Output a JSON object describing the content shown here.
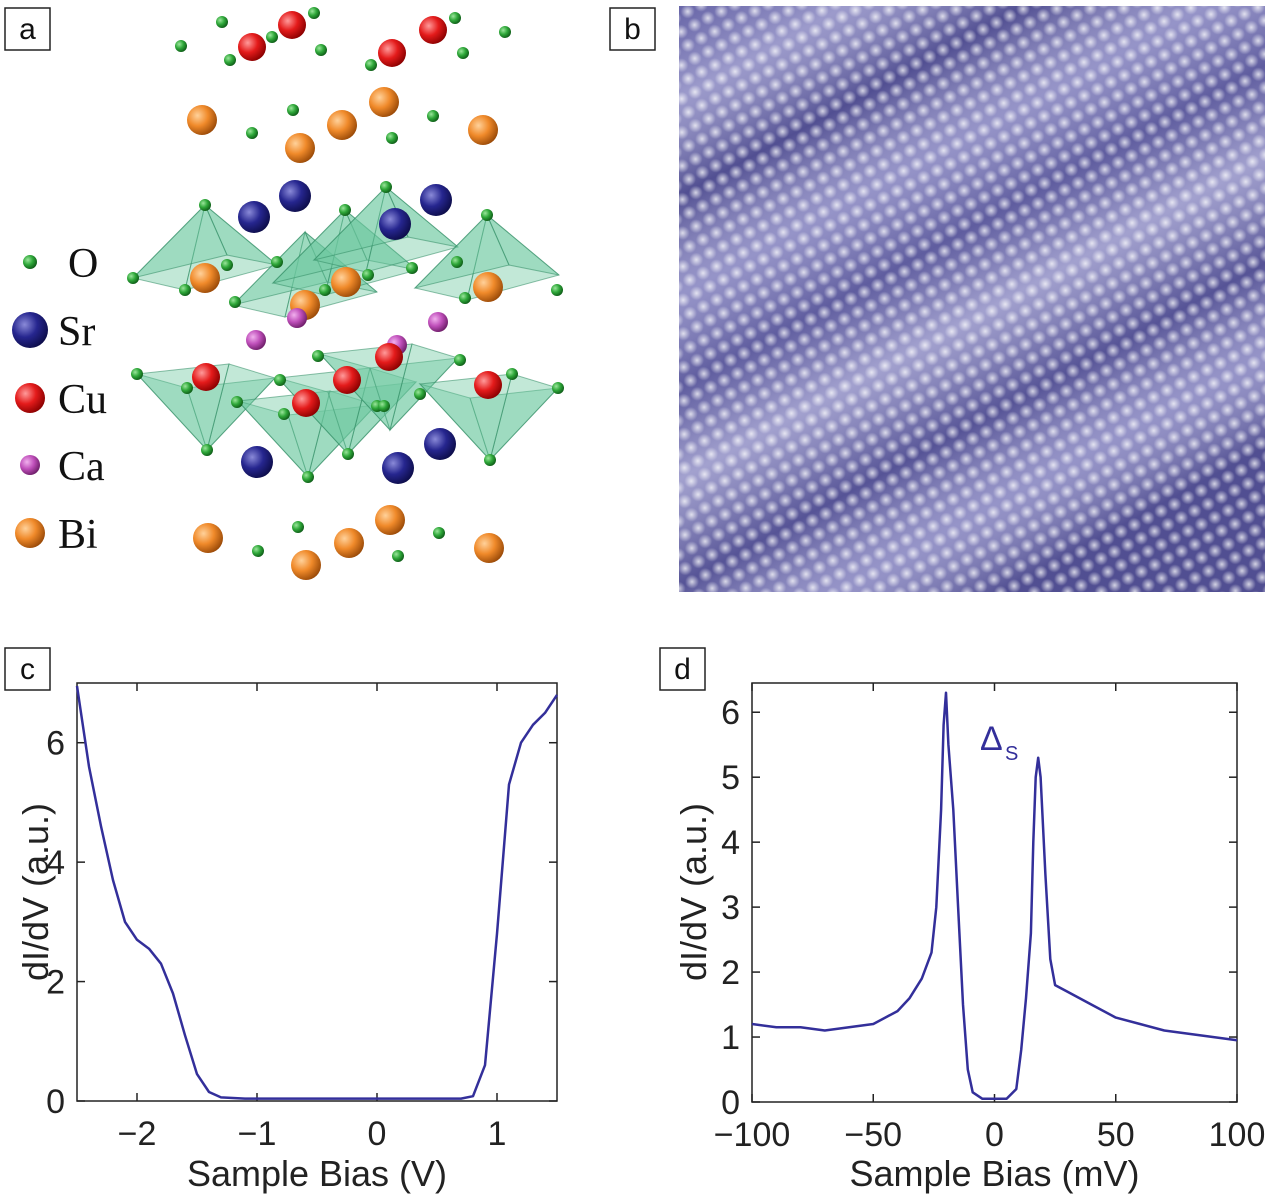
{
  "panel_labels": [
    "a",
    "b",
    "c",
    "d"
  ],
  "legend": [
    "O",
    "Sr",
    "Cu",
    "Ca",
    "Bi"
  ],
  "chart_data": [
    {
      "type": "line",
      "xlabel": "Sample Bias (V)",
      "ylabel": "dI/dV (a.u.)",
      "xlim": [
        -2.5,
        1.5
      ],
      "ylim": [
        0,
        7
      ],
      "xticks": [
        {
          "value": -2,
          "label": "−2"
        },
        {
          "value": -1,
          "label": "−1"
        },
        0,
        1
      ],
      "yticks": [
        0,
        2,
        4,
        6
      ],
      "color": "#332f9a",
      "x": [
        -2.5,
        -2.4,
        -2.3,
        -2.2,
        -2.1,
        -2.0,
        -1.9,
        -1.8,
        -1.7,
        -1.6,
        -1.5,
        -1.4,
        -1.3,
        -1.2,
        -1.1,
        -1.0,
        -0.9,
        -0.8,
        -0.7,
        -0.6,
        -0.5,
        -0.4,
        -0.3,
        -0.2,
        -0.1,
        0,
        0.1,
        0.2,
        0.3,
        0.4,
        0.5,
        0.6,
        0.7,
        0.8,
        0.9,
        1.0,
        1.1,
        1.2,
        1.3,
        1.4,
        1.5
      ],
      "values": [
        6.95,
        5.6,
        4.6,
        3.7,
        3.0,
        2.7,
        2.55,
        2.3,
        1.8,
        1.1,
        0.45,
        0.15,
        0.06,
        0.05,
        0.04,
        0.04,
        0.04,
        0.04,
        0.04,
        0.04,
        0.04,
        0.04,
        0.04,
        0.04,
        0.04,
        0.04,
        0.04,
        0.04,
        0.04,
        0.04,
        0.04,
        0.04,
        0.04,
        0.08,
        0.6,
        2.8,
        5.3,
        6.0,
        6.3,
        6.5,
        6.8
      ]
    },
    {
      "type": "line",
      "xlabel": "Sample Bias (mV)",
      "ylabel": "dI/dV (a.u.)",
      "annotation": {
        "text": "Δ",
        "subscript": "S"
      },
      "xlim": [
        -100,
        100
      ],
      "ylim": [
        0,
        6.45
      ],
      "xticks": [
        {
          "value": -100,
          "label": "−100"
        },
        {
          "value": -50,
          "label": "−50"
        },
        0,
        50,
        100
      ],
      "yticks": [
        0,
        1,
        2,
        3,
        4,
        5,
        6
      ],
      "color": "#332f9a",
      "x": [
        -100,
        -90,
        -80,
        -70,
        -60,
        -50,
        -40,
        -35,
        -30,
        -26,
        -24,
        -22,
        -21,
        -20,
        -19,
        -17,
        -15,
        -13,
        -11,
        -9,
        -5,
        0,
        5,
        9,
        11,
        13,
        15,
        16,
        17,
        18,
        19,
        21,
        23,
        25,
        30,
        40,
        50,
        60,
        70,
        80,
        90,
        100
      ],
      "values": [
        1.2,
        1.15,
        1.15,
        1.1,
        1.15,
        1.2,
        1.4,
        1.6,
        1.9,
        2.3,
        3.0,
        4.5,
        5.8,
        6.3,
        5.5,
        4.5,
        3.0,
        1.5,
        0.5,
        0.15,
        0.05,
        0.05,
        0.05,
        0.2,
        0.8,
        1.6,
        2.6,
        4.0,
        5.0,
        5.3,
        5.0,
        3.5,
        2.2,
        1.8,
        1.7,
        1.5,
        1.3,
        1.2,
        1.1,
        1.05,
        1.0,
        0.95
      ]
    }
  ]
}
